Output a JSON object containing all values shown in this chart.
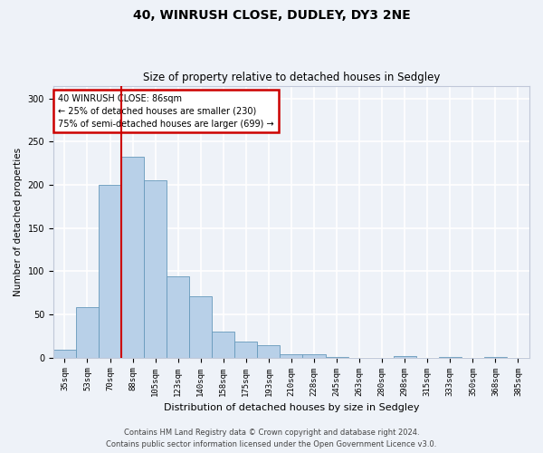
{
  "title1": "40, WINRUSH CLOSE, DUDLEY, DY3 2NE",
  "title2": "Size of property relative to detached houses in Sedgley",
  "xlabel": "Distribution of detached houses by size in Sedgley",
  "ylabel": "Number of detached properties",
  "categories": [
    "35sqm",
    "53sqm",
    "70sqm",
    "88sqm",
    "105sqm",
    "123sqm",
    "140sqm",
    "158sqm",
    "175sqm",
    "193sqm",
    "210sqm",
    "228sqm",
    "245sqm",
    "263sqm",
    "280sqm",
    "298sqm",
    "315sqm",
    "333sqm",
    "350sqm",
    "368sqm",
    "385sqm"
  ],
  "values": [
    9,
    58,
    200,
    233,
    205,
    94,
    71,
    30,
    19,
    14,
    4,
    4,
    1,
    0,
    0,
    2,
    0,
    1,
    0,
    1,
    0
  ],
  "bar_color": "#b8d0e8",
  "bar_edge_color": "#6699bb",
  "annotation_text": "40 WINRUSH CLOSE: 86sqm\n← 25% of detached houses are smaller (230)\n75% of semi-detached houses are larger (699) →",
  "annotation_box_color": "#ffffff",
  "annotation_box_edge_color": "#cc0000",
  "vline_x_index": 3,
  "ylim": [
    0,
    315
  ],
  "yticks": [
    0,
    50,
    100,
    150,
    200,
    250,
    300
  ],
  "footer1": "Contains HM Land Registry data © Crown copyright and database right 2024.",
  "footer2": "Contains public sector information licensed under the Open Government Licence v3.0.",
  "background_color": "#eef2f8",
  "grid_color": "#ffffff",
  "title1_fontsize": 10,
  "title2_fontsize": 8.5,
  "ylabel_fontsize": 7.5,
  "xlabel_fontsize": 8,
  "tick_fontsize": 6.5,
  "annotation_fontsize": 7,
  "footer_fontsize": 6
}
